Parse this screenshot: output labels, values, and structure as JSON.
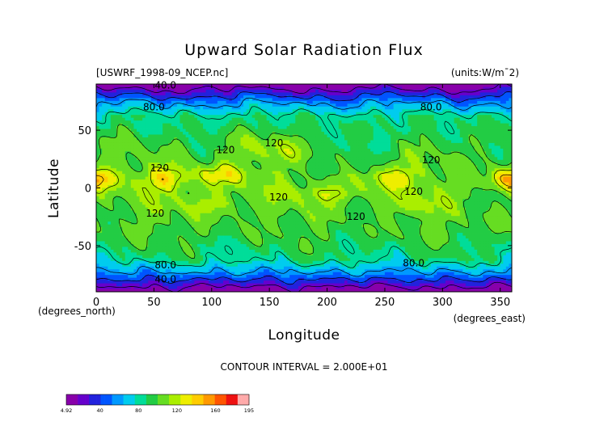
{
  "chart_data": {
    "type": "heatmap",
    "title": "Upward Solar Radiation Flux",
    "file_label": "[USWRF_1998-09_NCEP.nc]",
    "units_label": "(units:W/m¯2)",
    "xlabel": "Longitude",
    "ylabel": "Latitude",
    "x_unit_label": "(degrees_east)",
    "y_unit_label": "(degrees_north)",
    "xlim": [
      0,
      360
    ],
    "ylim": [
      -90,
      90
    ],
    "x_ticks": [
      0,
      50,
      100,
      150,
      200,
      250,
      300,
      350
    ],
    "y_ticks": [
      50,
      0,
      -50
    ],
    "contour_interval_text": "CONTOUR INTERVAL = 2.000E+01",
    "contour_labels": [
      {
        "text": "40.0",
        "lon": 60,
        "lat": 89
      },
      {
        "text": "80.0",
        "lon": 50,
        "lat": 70
      },
      {
        "text": "80.0",
        "lon": 290,
        "lat": 70
      },
      {
        "text": "120",
        "lon": 55,
        "lat": 17
      },
      {
        "text": "120",
        "lon": 112,
        "lat": 33
      },
      {
        "text": "120",
        "lon": 154,
        "lat": 39
      },
      {
        "text": "120",
        "lon": 290,
        "lat": 24
      },
      {
        "text": "120",
        "lon": 51,
        "lat": -22
      },
      {
        "text": "120",
        "lon": 158,
        "lat": -8
      },
      {
        "text": "120",
        "lon": 225,
        "lat": -25
      },
      {
        "text": "120",
        "lon": 275,
        "lat": -3
      },
      {
        "text": "80.0",
        "lon": 60,
        "lat": -67
      },
      {
        "text": "80.0",
        "lon": 275,
        "lat": -65
      },
      {
        "text": "40.0",
        "lon": 60,
        "lat": -79
      }
    ],
    "value_range": [
      4.92,
      195
    ],
    "colorbar_ticks": [
      "4.92",
      "40",
      "80",
      "120",
      "160",
      "195"
    ],
    "colors": [
      "#8800aa",
      "#6600cc",
      "#2222dd",
      "#0055ff",
      "#0099ff",
      "#00ccee",
      "#00dd99",
      "#22cc44",
      "#66dd22",
      "#aaee00",
      "#eeee00",
      "#ffcc00",
      "#ff9900",
      "#ff5500",
      "#ee1111",
      "#ffaaaa"
    ]
  }
}
